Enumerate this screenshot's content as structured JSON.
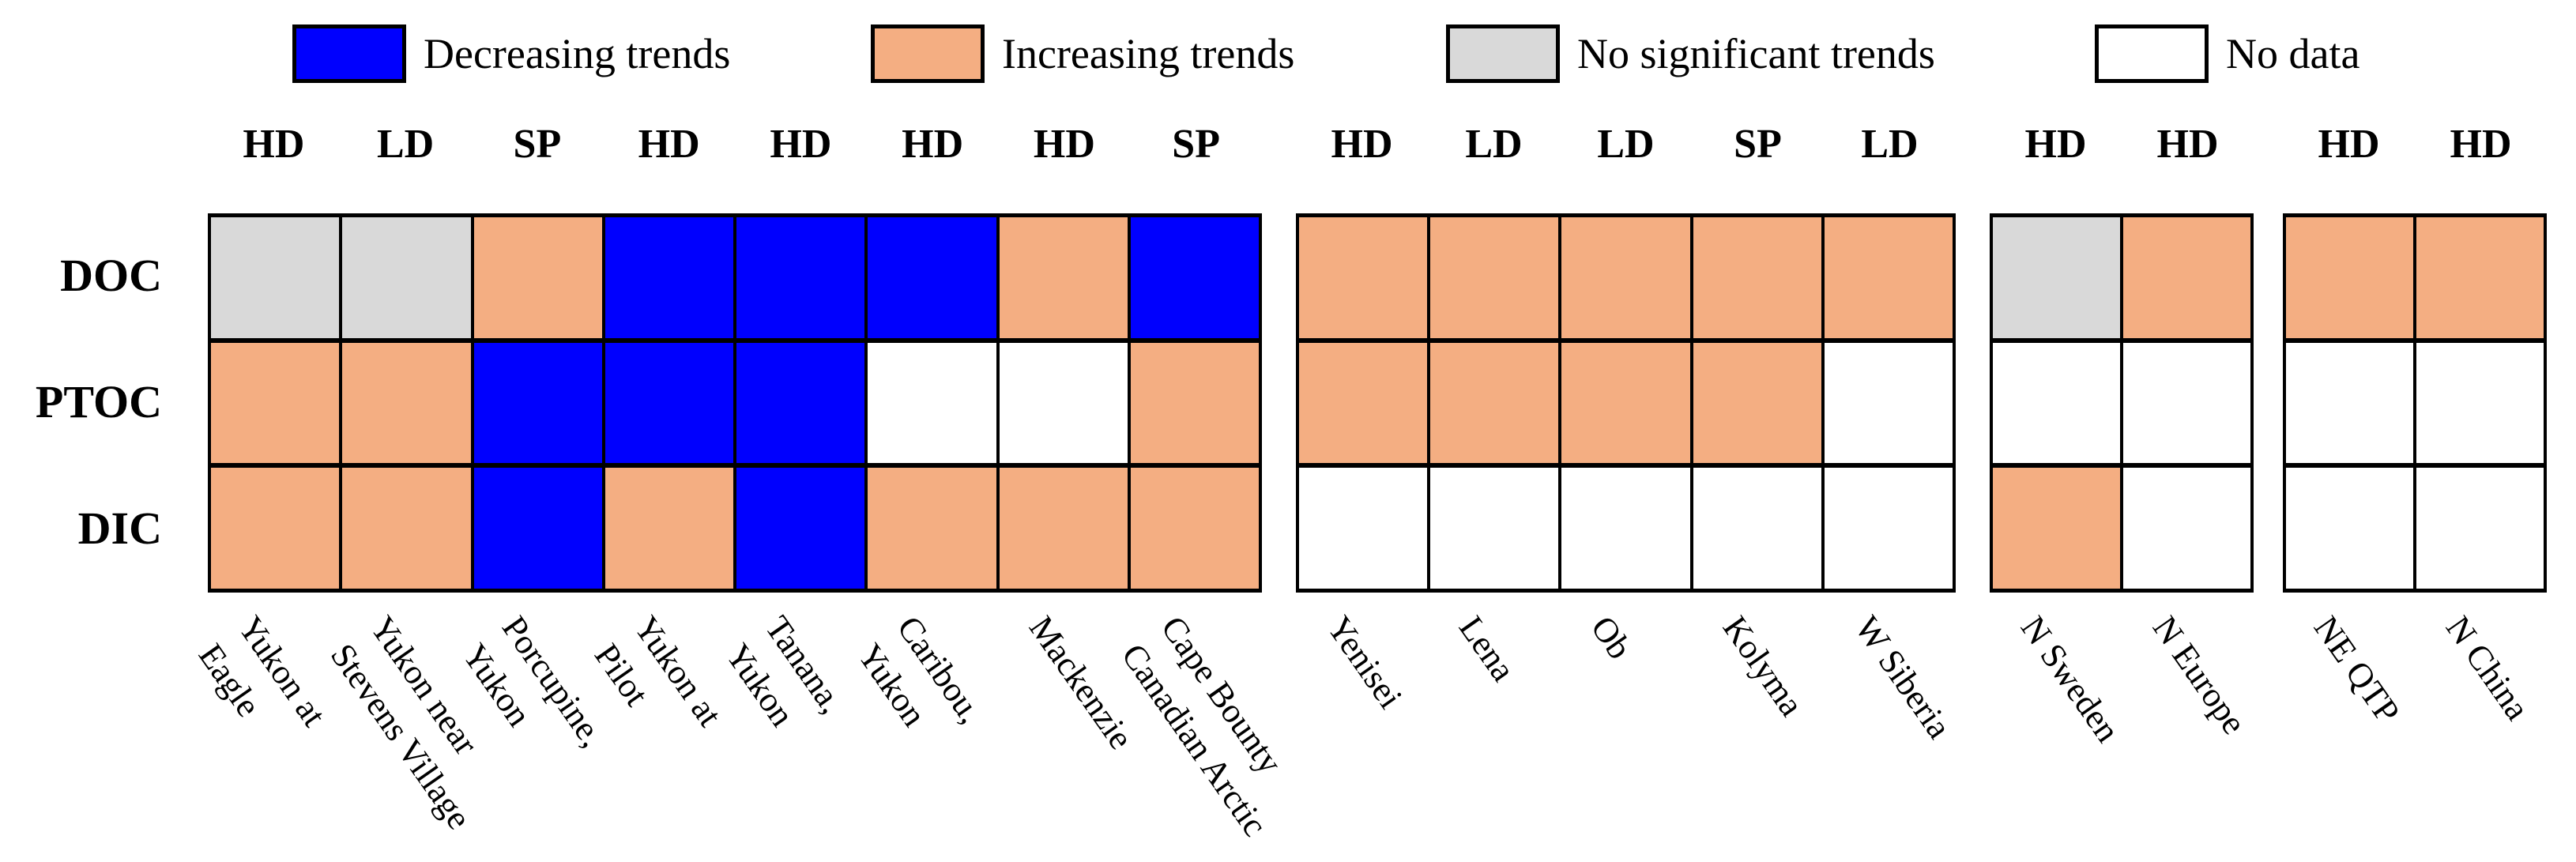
{
  "legend": {
    "items": [
      {
        "code": "decreasing",
        "label": "Decreasing trends",
        "color": "#0000FE"
      },
      {
        "code": "increasing",
        "label": "Increasing trends",
        "color": "#F4AE82"
      },
      {
        "code": "no_significant",
        "label": "No significant trends",
        "color": "#D9D9D9"
      },
      {
        "code": "no_data",
        "label": "No data",
        "color": "#FFFFFF"
      }
    ]
  },
  "chart_data": {
    "type": "heatmap",
    "rows": [
      "DOC",
      "PTOC",
      "DIC"
    ],
    "cell_states": [
      "decreasing",
      "increasing",
      "no_significant",
      "no_data"
    ],
    "legend_position": "top",
    "groups": [
      {
        "columns": [
          {
            "header": "HD",
            "label": "Yukon at\nEagle",
            "cells": [
              "no_significant",
              "increasing",
              "increasing"
            ]
          },
          {
            "header": "LD",
            "label": "Yukon near\nStevens Village",
            "cells": [
              "no_significant",
              "increasing",
              "increasing"
            ]
          },
          {
            "header": "SP",
            "label": "Porcupine,\nYukon",
            "cells": [
              "increasing",
              "decreasing",
              "decreasing"
            ]
          },
          {
            "header": "HD",
            "label": "Yukon at\nPilot",
            "cells": [
              "decreasing",
              "decreasing",
              "increasing"
            ]
          },
          {
            "header": "HD",
            "label": "Tanana,\nYukon",
            "cells": [
              "decreasing",
              "decreasing",
              "decreasing"
            ]
          },
          {
            "header": "HD",
            "label": "Caribou,\nYukon",
            "cells": [
              "decreasing",
              "no_data",
              "increasing"
            ]
          },
          {
            "header": "HD",
            "label": "Mackenzie",
            "cells": [
              "increasing",
              "no_data",
              "increasing"
            ]
          },
          {
            "header": "SP",
            "label": "Cape Bounty\nCanadian Arctic",
            "cells": [
              "decreasing",
              "increasing",
              "increasing"
            ]
          }
        ]
      },
      {
        "columns": [
          {
            "header": "HD",
            "label": "Yenisei",
            "cells": [
              "increasing",
              "increasing",
              "no_data"
            ]
          },
          {
            "header": "LD",
            "label": "Lena",
            "cells": [
              "increasing",
              "increasing",
              "no_data"
            ]
          },
          {
            "header": "LD",
            "label": "Ob",
            "cells": [
              "increasing",
              "increasing",
              "no_data"
            ]
          },
          {
            "header": "SP",
            "label": "Kolyma",
            "cells": [
              "increasing",
              "increasing",
              "no_data"
            ]
          },
          {
            "header": "LD",
            "label": "W Siberia",
            "cells": [
              "increasing",
              "no_data",
              "no_data"
            ]
          }
        ]
      },
      {
        "columns": [
          {
            "header": "HD",
            "label": "N Sweden",
            "cells": [
              "no_significant",
              "no_data",
              "increasing"
            ]
          },
          {
            "header": "HD",
            "label": "N Europe",
            "cells": [
              "increasing",
              "no_data",
              "no_data"
            ]
          }
        ]
      },
      {
        "columns": [
          {
            "header": "HD",
            "label": "NE QTP",
            "cells": [
              "increasing",
              "no_data",
              "no_data"
            ]
          },
          {
            "header": "HD",
            "label": "N China",
            "cells": [
              "increasing",
              "no_data",
              "no_data"
            ]
          }
        ]
      }
    ]
  }
}
